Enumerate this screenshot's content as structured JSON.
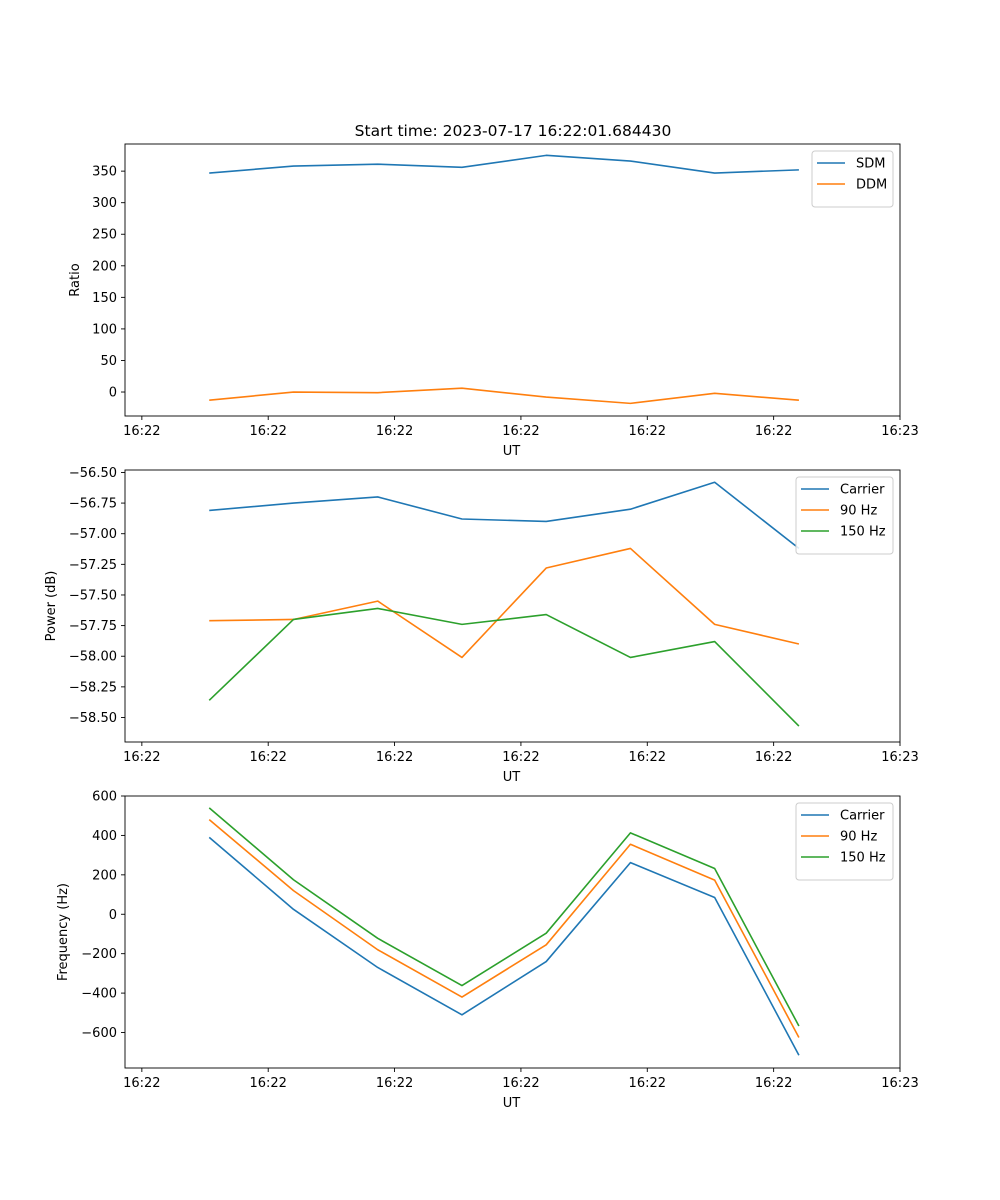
{
  "figure": {
    "title": "Start time: 2023-07-17 16:22:01.684430"
  },
  "colors": {
    "blue": "#1f77b4",
    "orange": "#ff7f0e",
    "green": "#2ca02c"
  },
  "chart_data": [
    {
      "type": "line",
      "title": "Start time: 2023-07-17 16:22:01.684430",
      "xlabel": "UT",
      "ylabel": "Ratio",
      "xlim": [
        0,
        9.2
      ],
      "ylim": [
        -38,
        393
      ],
      "x_ticks": [
        0.2,
        1.7,
        3.2,
        4.7,
        6.2,
        7.7,
        9.2
      ],
      "x_tick_labels": [
        "16:22",
        "16:22",
        "16:22",
        "16:22",
        "16:22",
        "16:22",
        "16:23"
      ],
      "y_ticks": [
        0,
        50,
        100,
        150,
        200,
        250,
        300,
        350
      ],
      "y_tick_labels": [
        "0",
        "50",
        "100",
        "150",
        "200",
        "250",
        "300",
        "350"
      ],
      "x": [
        1,
        2,
        3,
        4,
        5,
        6,
        7,
        8
      ],
      "legend_position": "top-right",
      "series": [
        {
          "name": "SDM",
          "color_key": "blue",
          "values": [
            347,
            358,
            361,
            356,
            375,
            366,
            347,
            352
          ]
        },
        {
          "name": "DDM",
          "color_key": "orange",
          "values": [
            -13,
            0,
            -1,
            6,
            -8,
            -18,
            -2,
            -13
          ]
        }
      ]
    },
    {
      "type": "line",
      "title": "",
      "xlabel": "UT",
      "ylabel": "Power (dB)",
      "xlim": [
        0,
        9.2
      ],
      "ylim": [
        -58.7,
        -56.48
      ],
      "x_ticks": [
        0.2,
        1.7,
        3.2,
        4.7,
        6.2,
        7.7,
        9.2
      ],
      "x_tick_labels": [
        "16:22",
        "16:22",
        "16:22",
        "16:22",
        "16:22",
        "16:22",
        "16:23"
      ],
      "y_ticks": [
        -56.5,
        -56.75,
        -57.0,
        -57.25,
        -57.5,
        -57.75,
        -58.0,
        -58.25,
        -58.5
      ],
      "y_tick_labels": [
        "−56.50",
        "−56.75",
        "−57.00",
        "−57.25",
        "−57.50",
        "−57.75",
        "−58.00",
        "−58.25",
        "−58.50"
      ],
      "x": [
        1,
        2,
        3,
        4,
        5,
        6,
        7,
        8
      ],
      "legend_position": "top-right",
      "series": [
        {
          "name": "Carrier",
          "color_key": "blue",
          "values": [
            -56.81,
            -56.75,
            -56.7,
            -56.88,
            -56.9,
            -56.8,
            -56.58,
            -57.12
          ]
        },
        {
          "name": "90 Hz",
          "color_key": "orange",
          "values": [
            -57.71,
            -57.7,
            -57.55,
            -58.01,
            -57.28,
            -57.12,
            -57.74,
            -57.9
          ]
        },
        {
          "name": "150 Hz",
          "color_key": "green",
          "values": [
            -58.36,
            -57.7,
            -57.61,
            -57.74,
            -57.66,
            -58.01,
            -57.88,
            -58.57
          ]
        }
      ]
    },
    {
      "type": "line",
      "title": "",
      "xlabel": "UT",
      "ylabel": "Frequency (Hz)",
      "xlim": [
        0,
        9.2
      ],
      "ylim": [
        -780,
        600
      ],
      "x_ticks": [
        0.2,
        1.7,
        3.2,
        4.7,
        6.2,
        7.7,
        9.2
      ],
      "x_tick_labels": [
        "16:22",
        "16:22",
        "16:22",
        "16:22",
        "16:22",
        "16:22",
        "16:23"
      ],
      "y_ticks": [
        -600,
        -400,
        -200,
        0,
        200,
        400,
        600
      ],
      "y_tick_labels": [
        "−600",
        "−400",
        "−200",
        "0",
        "200",
        "400",
        "600"
      ],
      "x": [
        1,
        2,
        3,
        4,
        5,
        6,
        7,
        8
      ],
      "legend_position": "top-right",
      "series": [
        {
          "name": "Carrier",
          "color_key": "blue",
          "values": [
            390,
            25,
            -270,
            -510,
            -240,
            262,
            85,
            -715
          ]
        },
        {
          "name": "90 Hz",
          "color_key": "orange",
          "values": [
            480,
            120,
            -180,
            -420,
            -155,
            355,
            173,
            -625
          ]
        },
        {
          "name": "150 Hz",
          "color_key": "green",
          "values": [
            540,
            175,
            -122,
            -362,
            -96,
            413,
            232,
            -567
          ]
        }
      ]
    }
  ]
}
